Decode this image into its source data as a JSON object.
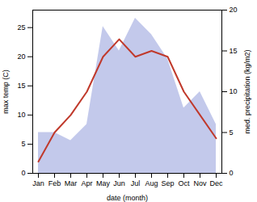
{
  "chart_data": {
    "type": "line",
    "categories": [
      "Jan",
      "Feb",
      "Mar",
      "Apr",
      "May",
      "Jun",
      "Jul",
      "Aug",
      "Sep",
      "Oct",
      "Nov",
      "Dec"
    ],
    "series": [
      {
        "type": "area",
        "axis": "y2",
        "color": "#b8c0e8",
        "values": [
          5,
          5,
          4,
          6,
          18,
          15,
          19,
          17,
          14,
          8,
          10,
          6
        ]
      },
      {
        "type": "line",
        "color": "#c0392b",
        "values": [
          2,
          7,
          10,
          14,
          20,
          23,
          20,
          21,
          20,
          14,
          10,
          6
        ]
      }
    ],
    "xlabel": "date (month)",
    "ylabel": "max temp (C)",
    "y2label": "med. precipitation (kg/m2)",
    "ylim": [
      0,
      28
    ],
    "yticks": [
      0,
      5,
      10,
      15,
      20,
      25
    ],
    "y2lim": [
      0,
      20
    ],
    "y2ticks": [
      0,
      5,
      10,
      15,
      20
    ],
    "grid": false
  }
}
